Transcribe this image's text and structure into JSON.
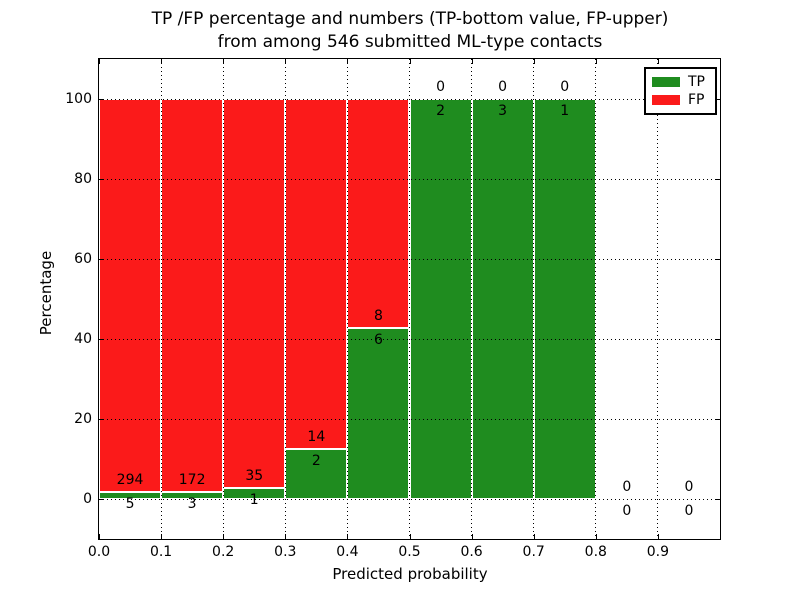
{
  "title": {
    "line1": "TP /FP percentage and numbers (TP-bottom value, FP-upper)",
    "line2": "from among 546 submitted ML-type contacts"
  },
  "axes": {
    "xlabel": "Predicted probability",
    "ylabel": "Percentage",
    "x_tick_labels": [
      "0.0",
      "0.1",
      "0.2",
      "0.3",
      "0.4",
      "0.5",
      "0.6",
      "0.7",
      "0.8",
      "0.9"
    ],
    "y_tick_labels": [
      "0",
      "20",
      "40",
      "60",
      "80",
      "100"
    ],
    "y_tick_values": [
      0,
      20,
      40,
      60,
      80,
      100
    ]
  },
  "legend": {
    "items": [
      {
        "label": "TP",
        "color": "#1f8c1f"
      },
      {
        "label": "FP",
        "color": "#fb1a1a"
      }
    ]
  },
  "colors": {
    "tp": "#1f8c1f",
    "fp": "#fb1a1a",
    "grid": "#000000",
    "background": "#ffffff"
  },
  "chart_data": {
    "type": "bar",
    "stacked": true,
    "normalized_to_percent": true,
    "title": "TP /FP percentage and numbers (TP-bottom value, FP-upper) from among 546 submitted ML-type contacts",
    "xlabel": "Predicted probability",
    "ylabel": "Percentage",
    "xlim": [
      0.0,
      1.0
    ],
    "ylim": [
      -10,
      110
    ],
    "grid": true,
    "legend_position": "upper right",
    "bin_width": 0.1,
    "total_contacts": 546,
    "series_names": [
      "TP",
      "FP"
    ],
    "bins": [
      {
        "range": [
          0.0,
          0.1
        ],
        "tp": 5,
        "fp": 294
      },
      {
        "range": [
          0.1,
          0.2
        ],
        "tp": 3,
        "fp": 172
      },
      {
        "range": [
          0.2,
          0.3
        ],
        "tp": 1,
        "fp": 35
      },
      {
        "range": [
          0.3,
          0.4
        ],
        "tp": 2,
        "fp": 14
      },
      {
        "range": [
          0.4,
          0.5
        ],
        "tp": 6,
        "fp": 8
      },
      {
        "range": [
          0.5,
          0.6
        ],
        "tp": 2,
        "fp": 0
      },
      {
        "range": [
          0.6,
          0.7
        ],
        "tp": 3,
        "fp": 0
      },
      {
        "range": [
          0.7,
          0.8
        ],
        "tp": 1,
        "fp": 0
      },
      {
        "range": [
          0.8,
          0.9
        ],
        "tp": 0,
        "fp": 0
      },
      {
        "range": [
          0.9,
          1.0
        ],
        "tp": 0,
        "fp": 0
      }
    ]
  }
}
